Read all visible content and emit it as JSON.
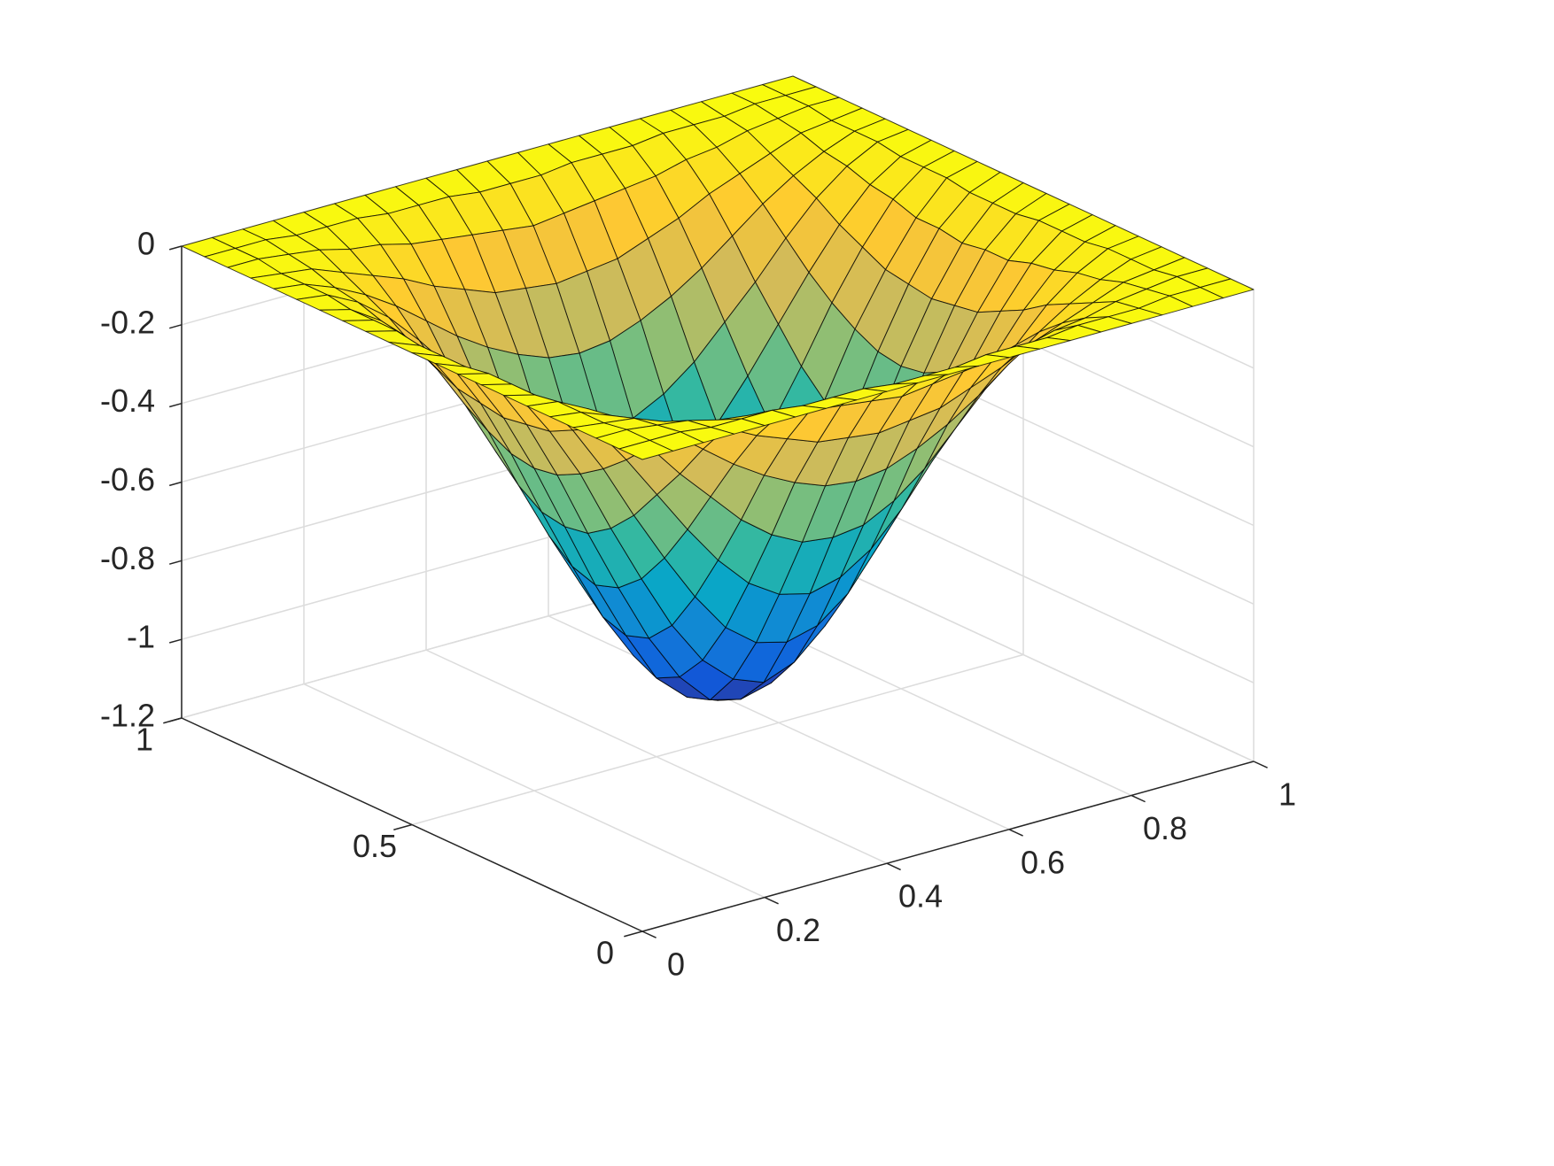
{
  "chart_data": {
    "type": "surface",
    "x": [
      0,
      0.05,
      0.1,
      0.15,
      0.2,
      0.25,
      0.3,
      0.35,
      0.4,
      0.45,
      0.5,
      0.55,
      0.6,
      0.65,
      0.7,
      0.75,
      0.8,
      0.85,
      0.9,
      0.95,
      1
    ],
    "y": [
      0,
      0.05,
      0.1,
      0.15,
      0.2,
      0.25,
      0.3,
      0.35,
      0.4,
      0.45,
      0.5,
      0.55,
      0.6,
      0.65,
      0.7,
      0.75,
      0.8,
      0.85,
      0.9,
      0.95,
      1
    ],
    "z": [
      [
        0,
        0,
        0,
        0,
        0,
        0,
        0,
        0,
        0,
        0,
        0,
        0,
        0,
        0,
        0,
        0,
        0,
        0,
        0,
        0,
        0
      ],
      [
        0,
        0,
        0,
        -0.01,
        -0.01,
        -0.01,
        -0.02,
        -0.02,
        -0.02,
        -0.03,
        -0.03,
        -0.03,
        -0.02,
        -0.02,
        -0.02,
        -0.01,
        -0.01,
        -0.01,
        0,
        0,
        0
      ],
      [
        0,
        0,
        -0.01,
        -0.02,
        -0.04,
        -0.05,
        -0.07,
        -0.08,
        -0.09,
        -0.1,
        -0.11,
        -0.1,
        -0.09,
        -0.08,
        -0.07,
        -0.05,
        -0.04,
        -0.02,
        -0.01,
        0,
        0
      ],
      [
        0,
        -0.01,
        -0.02,
        -0.05,
        -0.08,
        -0.11,
        -0.15,
        -0.18,
        -0.21,
        -0.22,
        -0.23,
        -0.22,
        -0.21,
        -0.18,
        -0.15,
        -0.11,
        -0.08,
        -0.05,
        -0.02,
        -0.01,
        0
      ],
      [
        0,
        -0.01,
        -0.04,
        -0.08,
        -0.13,
        -0.19,
        -0.25,
        -0.3,
        -0.34,
        -0.37,
        -0.38,
        -0.37,
        -0.34,
        -0.3,
        -0.25,
        -0.19,
        -0.13,
        -0.08,
        -0.04,
        -0.01,
        0
      ],
      [
        0,
        -0.01,
        -0.05,
        -0.11,
        -0.19,
        -0.28,
        -0.36,
        -0.44,
        -0.5,
        -0.54,
        -0.55,
        -0.54,
        -0.5,
        -0.44,
        -0.36,
        -0.28,
        -0.19,
        -0.11,
        -0.05,
        -0.01,
        0
      ],
      [
        0,
        -0.02,
        -0.07,
        -0.15,
        -0.25,
        -0.36,
        -0.47,
        -0.57,
        -0.65,
        -0.7,
        -0.72,
        -0.7,
        -0.65,
        -0.57,
        -0.47,
        -0.36,
        -0.25,
        -0.15,
        -0.07,
        -0.02,
        0
      ],
      [
        0,
        -0.02,
        -0.08,
        -0.18,
        -0.3,
        -0.44,
        -0.57,
        -0.69,
        -0.79,
        -0.85,
        -0.87,
        -0.85,
        -0.79,
        -0.69,
        -0.57,
        -0.44,
        -0.3,
        -0.18,
        -0.08,
        -0.02,
        0
      ],
      [
        0,
        -0.02,
        -0.1,
        -0.21,
        -0.34,
        -0.5,
        -0.65,
        -0.79,
        -0.9,
        -0.97,
        -1,
        -0.97,
        -0.9,
        -0.79,
        -0.65,
        -0.5,
        -0.34,
        -0.21,
        -0.1,
        -0.02,
        0
      ],
      [
        0,
        -0.03,
        -0.1,
        -0.22,
        -0.37,
        -0.54,
        -0.7,
        -0.85,
        -0.97,
        -1.05,
        -1.07,
        -1.05,
        -0.97,
        -0.85,
        -0.7,
        -0.54,
        -0.37,
        -0.22,
        -0.1,
        -0.03,
        0
      ],
      [
        0,
        -0.03,
        -0.11,
        -0.23,
        -0.38,
        -0.55,
        -0.72,
        -0.87,
        -1,
        -1.07,
        -1.1,
        -1.07,
        -1,
        -0.87,
        -0.72,
        -0.55,
        -0.38,
        -0.23,
        -0.11,
        -0.03,
        0
      ],
      [
        0,
        -0.03,
        -0.1,
        -0.22,
        -0.37,
        -0.54,
        -0.7,
        -0.85,
        -0.97,
        -1.05,
        -1.07,
        -1.05,
        -0.97,
        -0.85,
        -0.7,
        -0.54,
        -0.37,
        -0.22,
        -0.1,
        -0.03,
        0
      ],
      [
        0,
        -0.02,
        -0.1,
        -0.21,
        -0.34,
        -0.5,
        -0.65,
        -0.79,
        -0.9,
        -0.97,
        -1,
        -0.97,
        -0.9,
        -0.79,
        -0.65,
        -0.5,
        -0.34,
        -0.21,
        -0.1,
        -0.02,
        0
      ],
      [
        0,
        -0.02,
        -0.08,
        -0.18,
        -0.3,
        -0.44,
        -0.57,
        -0.69,
        -0.79,
        -0.85,
        -0.87,
        -0.85,
        -0.79,
        -0.69,
        -0.57,
        -0.44,
        -0.3,
        -0.18,
        -0.08,
        -0.02,
        0
      ],
      [
        0,
        -0.02,
        -0.07,
        -0.15,
        -0.25,
        -0.36,
        -0.47,
        -0.57,
        -0.65,
        -0.7,
        -0.72,
        -0.7,
        -0.65,
        -0.57,
        -0.47,
        -0.36,
        -0.25,
        -0.15,
        -0.07,
        -0.02,
        0
      ],
      [
        0,
        -0.01,
        -0.05,
        -0.11,
        -0.19,
        -0.28,
        -0.36,
        -0.44,
        -0.5,
        -0.54,
        -0.55,
        -0.54,
        -0.5,
        -0.44,
        -0.36,
        -0.28,
        -0.19,
        -0.11,
        -0.05,
        -0.01,
        0
      ],
      [
        0,
        -0.01,
        -0.04,
        -0.08,
        -0.13,
        -0.19,
        -0.25,
        -0.3,
        -0.34,
        -0.37,
        -0.38,
        -0.37,
        -0.34,
        -0.3,
        -0.25,
        -0.19,
        -0.13,
        -0.08,
        -0.04,
        -0.01,
        0
      ],
      [
        0,
        -0.01,
        -0.02,
        -0.05,
        -0.08,
        -0.11,
        -0.15,
        -0.18,
        -0.21,
        -0.22,
        -0.23,
        -0.22,
        -0.21,
        -0.18,
        -0.15,
        -0.11,
        -0.08,
        -0.05,
        -0.02,
        -0.01,
        0
      ],
      [
        0,
        0,
        -0.01,
        -0.02,
        -0.04,
        -0.05,
        -0.07,
        -0.08,
        -0.09,
        -0.1,
        -0.11,
        -0.1,
        -0.09,
        -0.08,
        -0.07,
        -0.05,
        -0.04,
        -0.02,
        -0.01,
        0,
        0
      ],
      [
        0,
        0,
        0,
        -0.01,
        -0.01,
        -0.01,
        -0.02,
        -0.02,
        -0.02,
        -0.03,
        -0.03,
        -0.03,
        -0.02,
        -0.02,
        -0.02,
        -0.01,
        -0.01,
        -0.01,
        0,
        0,
        0
      ],
      [
        0,
        0,
        0,
        0,
        0,
        0,
        0,
        0,
        0,
        0,
        0,
        0,
        0,
        0,
        0,
        0,
        0,
        0,
        0,
        0,
        0
      ]
    ],
    "xlim": [
      0,
      1
    ],
    "ylim": [
      0,
      1
    ],
    "zlim": [
      -1.2,
      0
    ],
    "xticks": [
      0,
      0.2,
      0.4,
      0.6,
      0.8,
      1
    ],
    "yticks": [
      0,
      0.5,
      1
    ],
    "zticks": [
      -1.2,
      -1,
      -0.8,
      -0.6,
      -0.4,
      -0.2,
      0
    ],
    "grid": true,
    "edgecolor": "#000000",
    "colormap": [
      "#352a87",
      "#0f5cdd",
      "#1481d6",
      "#06a4ca",
      "#2eb7a4",
      "#87bf77",
      "#d1bb59",
      "#fec832",
      "#f9fb0e"
    ]
  }
}
